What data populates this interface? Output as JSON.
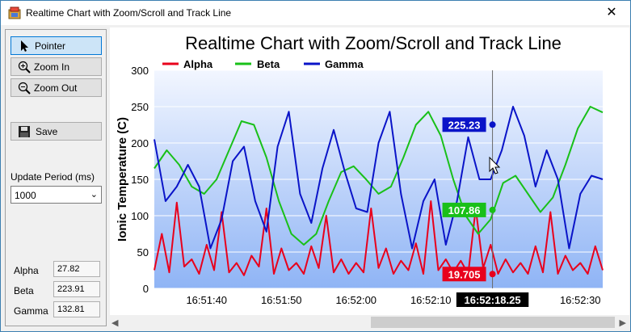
{
  "window": {
    "title": "Realtime Chart with Zoom/Scroll and Track Line",
    "close_glyph": "✕"
  },
  "toolbar": {
    "pointer_label": "Pointer",
    "zoom_in_label": "Zoom In",
    "zoom_out_label": "Zoom Out",
    "save_label": "Save"
  },
  "update_period": {
    "label": "Update Period (ms)",
    "value": "1000"
  },
  "readouts": [
    {
      "name": "Alpha",
      "value": "27.82"
    },
    {
      "name": "Beta",
      "value": "223.91"
    },
    {
      "name": "Gamma",
      "value": "132.81"
    }
  ],
  "colors": {
    "alpha": "#e8001c",
    "beta": "#19c019",
    "gamma": "#0a14c8",
    "accent": "#0078d7"
  },
  "chart_data": {
    "type": "line",
    "title": "Realtime Chart with Zoom/Scroll and Track Line",
    "ylabel": "Ionic Temperature (C)",
    "ylim": [
      0,
      300
    ],
    "yticks": [
      "0",
      "50",
      "100",
      "150",
      "200",
      "250",
      "300"
    ],
    "xticks": [
      "16:51:40",
      "16:51:50",
      "16:52:00",
      "16:52:10",
      "16:52:20",
      "16:52:30"
    ],
    "x_start": "16:51:33",
    "x_end": "16:52:33",
    "legend": [
      "Alpha",
      "Beta",
      "Gamma"
    ],
    "legend_position": "top-left",
    "track": {
      "time": "16:52:18.25",
      "labels": {
        "alpha": "19.705",
        "beta": "107.86",
        "gamma": "225.23"
      }
    },
    "series": [
      {
        "name": "Alpha",
        "color": "#e8001c",
        "values": [
          25,
          75,
          22,
          118,
          30,
          40,
          20,
          60,
          25,
          105,
          22,
          35,
          18,
          45,
          30,
          110,
          20,
          55,
          25,
          35,
          20,
          58,
          28,
          100,
          22,
          40,
          20,
          35,
          22,
          110,
          28,
          55,
          20,
          38,
          25,
          62,
          20,
          120,
          25,
          40,
          22,
          38,
          20,
          110,
          28,
          60,
          20,
          40,
          22,
          35,
          20,
          58,
          22,
          105,
          20,
          45,
          25,
          35,
          20,
          58,
          25
        ]
      },
      {
        "name": "Beta",
        "color": "#19c019",
        "values": [
          165,
          190,
          170,
          140,
          130,
          150,
          190,
          230,
          225,
          180,
          120,
          75,
          60,
          75,
          120,
          160,
          168,
          150,
          130,
          140,
          180,
          225,
          243,
          210,
          150,
          100,
          75,
          95,
          145,
          155,
          130,
          105,
          125,
          170,
          220,
          250,
          242
        ]
      },
      {
        "name": "Gamma",
        "color": "#0a14c8",
        "values": [
          205,
          120,
          140,
          170,
          140,
          55,
          95,
          175,
          195,
          120,
          78,
          195,
          243,
          130,
          90,
          165,
          218,
          160,
          110,
          105,
          200,
          243,
          130,
          55,
          120,
          150,
          60,
          120,
          208,
          150,
          150,
          190,
          250,
          210,
          140,
          190,
          150,
          55,
          130,
          155,
          150
        ]
      }
    ]
  }
}
